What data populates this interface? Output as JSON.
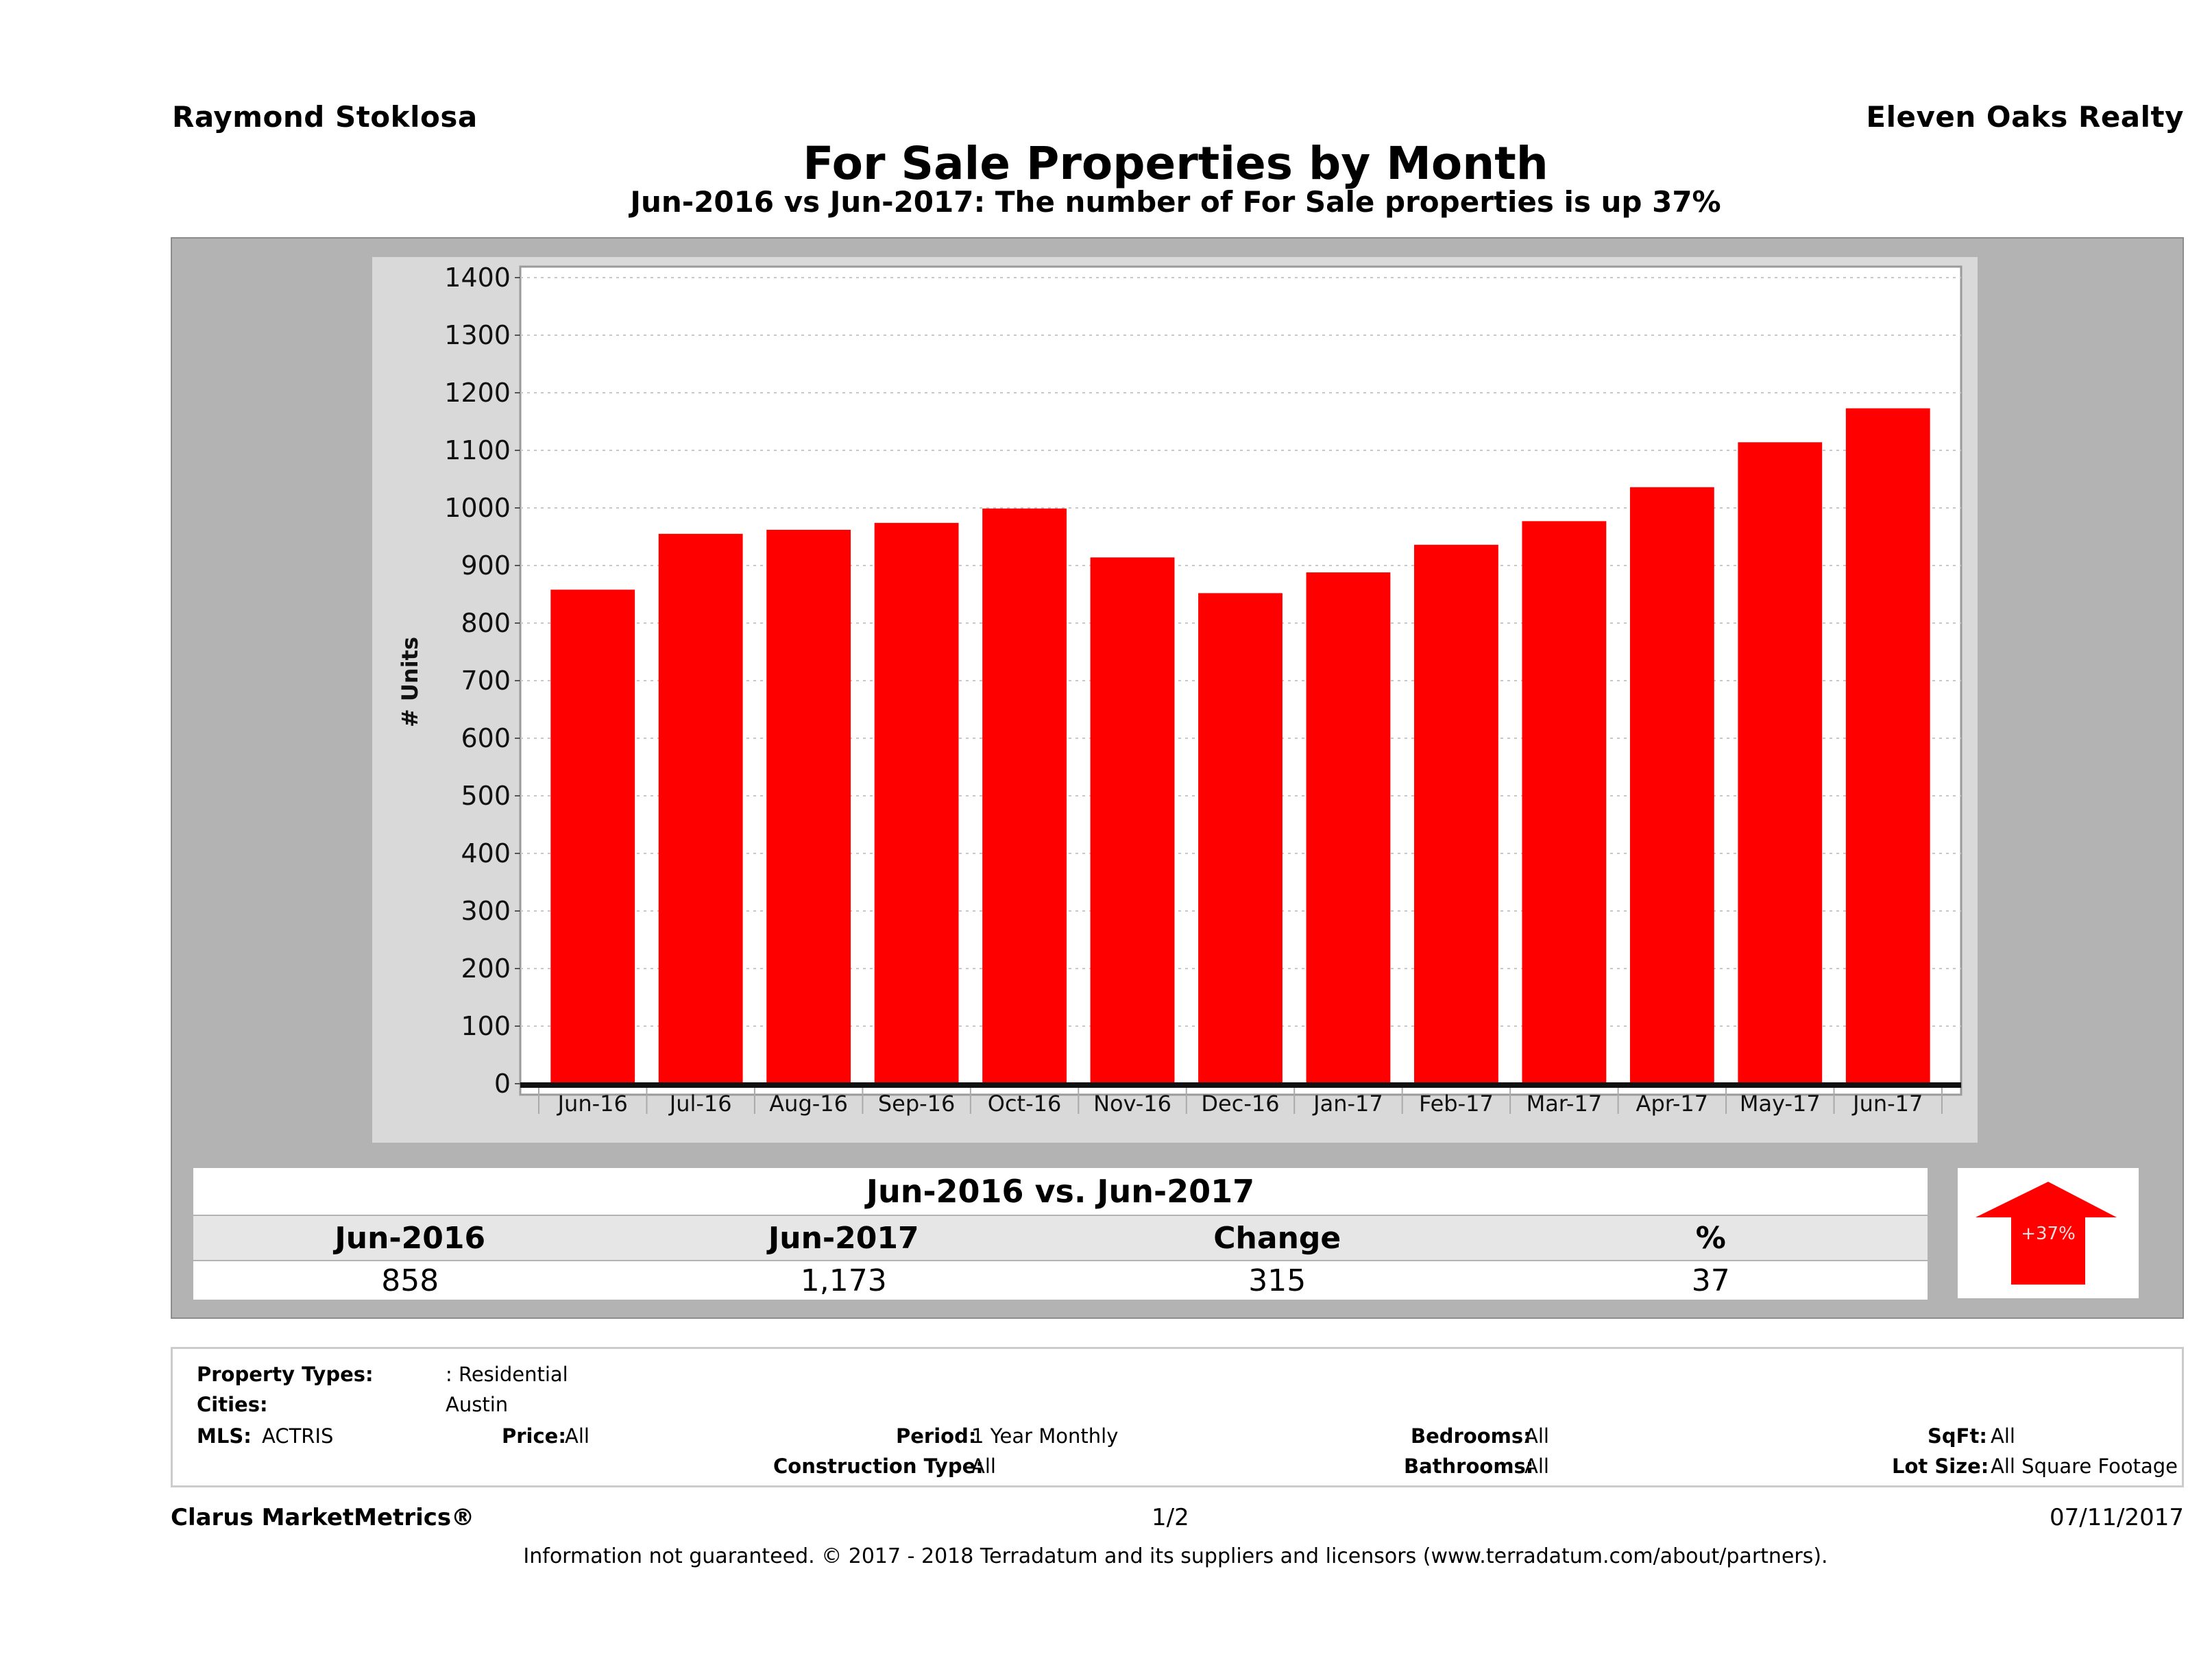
{
  "header": {
    "agent": "Raymond Stoklosa",
    "broker": "Eleven Oaks Realty",
    "title": "For Sale Properties by Month",
    "subtitle": "Jun-2016 vs Jun-2017: The number of For Sale  properties is up 37%"
  },
  "chart_data": {
    "type": "bar",
    "title": "For Sale Properties by Month",
    "xlabel": "",
    "ylabel": "# Units",
    "ylim": [
      0,
      1400
    ],
    "yticks": [
      0,
      100,
      200,
      300,
      400,
      500,
      600,
      700,
      800,
      900,
      1000,
      1100,
      1200,
      1300,
      1400
    ],
    "grid": true,
    "legend": "none",
    "bar_color": "#ff0000",
    "categories": [
      "Jun-16",
      "Jul-16",
      "Aug-16",
      "Sep-16",
      "Oct-16",
      "Nov-16",
      "Dec-16",
      "Jan-17",
      "Feb-17",
      "Mar-17",
      "Apr-17",
      "May-17",
      "Jun-17"
    ],
    "values": [
      858,
      955,
      962,
      974,
      999,
      914,
      852,
      888,
      936,
      977,
      1036,
      1114,
      1173
    ]
  },
  "summary": {
    "heading": "Jun-2016 vs. Jun-2017",
    "labels": [
      "Jun-2016",
      "Jun-2017",
      "Change",
      "%"
    ],
    "values": [
      "858",
      "1,173",
      "315",
      "37"
    ],
    "badge": "+37%",
    "badge_direction": "up",
    "badge_color": "#ff0000"
  },
  "filters": {
    "property_types_label": "Property Types:",
    "property_types_value": ": Residential",
    "cities_label": "Cities:",
    "cities_value": "Austin",
    "mls_label": "MLS:",
    "mls_value": "ACTRIS",
    "price_label": "Price:",
    "price_value": "All",
    "period_label": "Period:",
    "period_value": "1 Year Monthly",
    "construction_label": "Construction Type:",
    "construction_value": "All",
    "bedrooms_label": "Bedrooms:",
    "bedrooms_value": "All",
    "bathrooms_label": "Bathrooms:",
    "bathrooms_value": "All",
    "sqft_label": "SqFt:",
    "sqft_value": "All",
    "lot_label": "Lot Size:",
    "lot_value": "All Square Footage"
  },
  "footer": {
    "brand": "Clarus MarketMetrics®",
    "page": "1/2",
    "date": "07/11/2017",
    "disclaimer": "Information not guaranteed. © 2017 - 2018 Terradatum and its suppliers and licensors (www.terradatum.com/about/partners)."
  }
}
